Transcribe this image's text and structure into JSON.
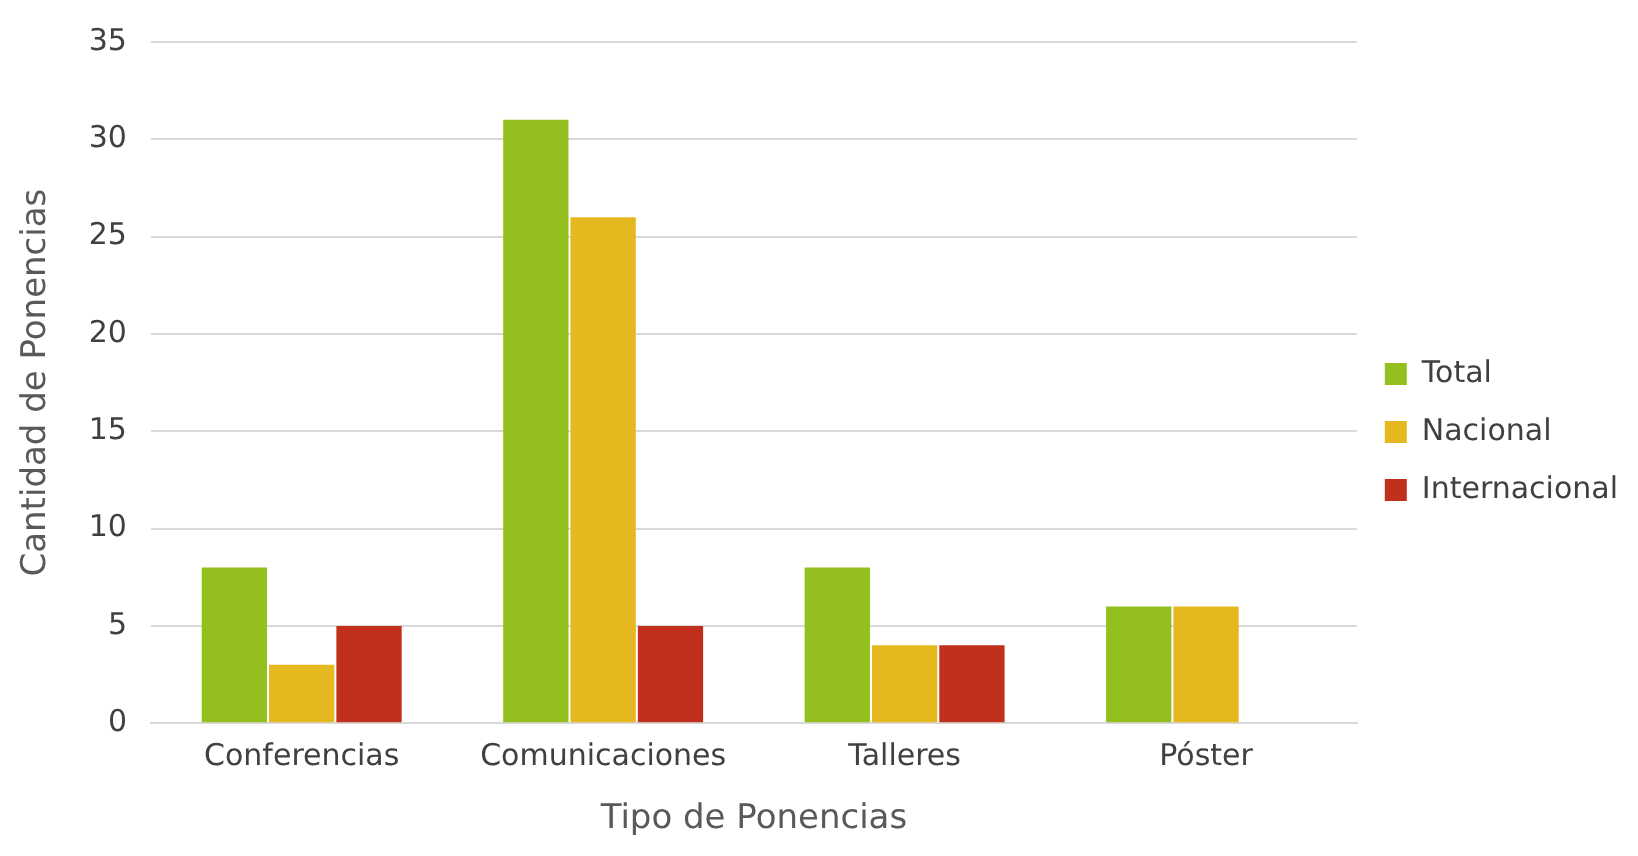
{
  "chart_data": {
    "type": "bar",
    "xlabel": "Tipo de Ponencias",
    "ylabel": "Cantidad de Ponencias",
    "categories": [
      "Conferencias",
      "Comunicaciones",
      "Talleres",
      "Póster"
    ],
    "series": [
      {
        "name": "Total",
        "color": "#93c01f",
        "values": [
          8,
          31,
          8,
          6
        ]
      },
      {
        "name": "Nacional",
        "color": "#e6b820",
        "values": [
          3,
          26,
          4,
          6
        ]
      },
      {
        "name": "Internacional",
        "color": "#c0301c",
        "values": [
          5,
          5,
          4,
          0
        ]
      }
    ],
    "ylim": [
      0,
      35
    ],
    "yticks": [
      0,
      5,
      10,
      15,
      20,
      25,
      30,
      35
    ],
    "grid": "y",
    "legend": "right"
  }
}
